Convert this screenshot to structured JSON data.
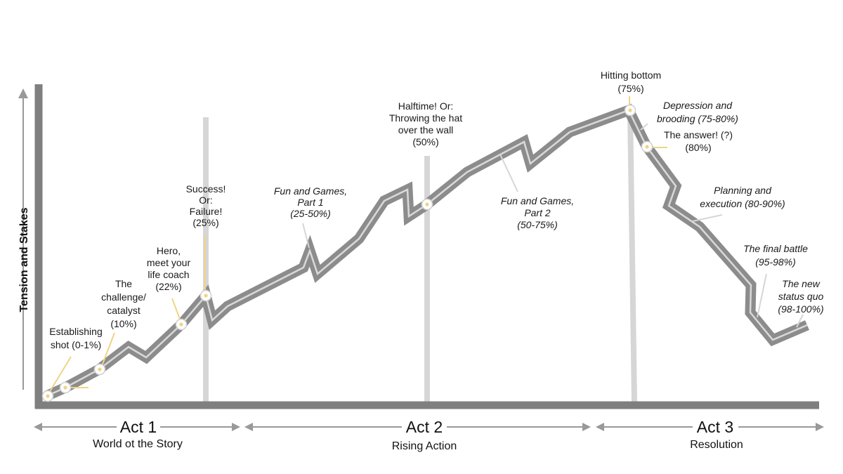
{
  "y_axis_label": "Tension and Stakes",
  "acts": [
    {
      "title": "Act 1",
      "subtitle": "World ot the Story"
    },
    {
      "title": "Act 2",
      "subtitle": "Rising Action"
    },
    {
      "title": "Act 3",
      "subtitle": "Resolution"
    }
  ],
  "beats": [
    {
      "lines": [
        "Establishing",
        "shot (0-1%)"
      ],
      "italic": false
    },
    {
      "lines": [
        "The",
        "challenge/",
        "catalyst",
        "(10%)"
      ],
      "italic": false
    },
    {
      "lines": [
        "Hero,",
        "meet your",
        "life coach",
        "(22%)"
      ],
      "italic": false
    },
    {
      "lines": [
        "Success!",
        "Or:",
        "Failure!",
        "(25%)"
      ],
      "italic": false
    },
    {
      "lines": [
        "Fun and Games,",
        "Part 1",
        "(25-50%)"
      ],
      "italic": true
    },
    {
      "lines": [
        "Halftime! Or:",
        "Throwing the hat",
        "over the wall",
        "(50%)"
      ],
      "italic": false
    },
    {
      "lines": [
        "Fun and Games,",
        "Part 2",
        "(50-75%)"
      ],
      "italic": true
    },
    {
      "lines": [
        "Hitting bottom",
        "(75%)"
      ],
      "italic": false
    },
    {
      "lines": [
        "Depression and",
        "brooding (75-80%)"
      ],
      "italic": true
    },
    {
      "lines": [
        "The answer! (?)",
        "(80%)"
      ],
      "italic": false
    },
    {
      "lines": [
        "Planning and",
        "execution (80-90%)"
      ],
      "italic": true
    },
    {
      "lines": [
        "The final battle",
        "(95-98%)"
      ],
      "italic": true
    },
    {
      "lines": [
        "The new",
        "status quo",
        "(98-100%)"
      ],
      "italic": true
    }
  ],
  "colors": {
    "axis": "#7f7f7f",
    "band": "#8c8c8c",
    "band_inner": "#d9d9d9",
    "divider": "#d6d6d6",
    "callout": "#f0d384",
    "arrow": "#999999"
  }
}
